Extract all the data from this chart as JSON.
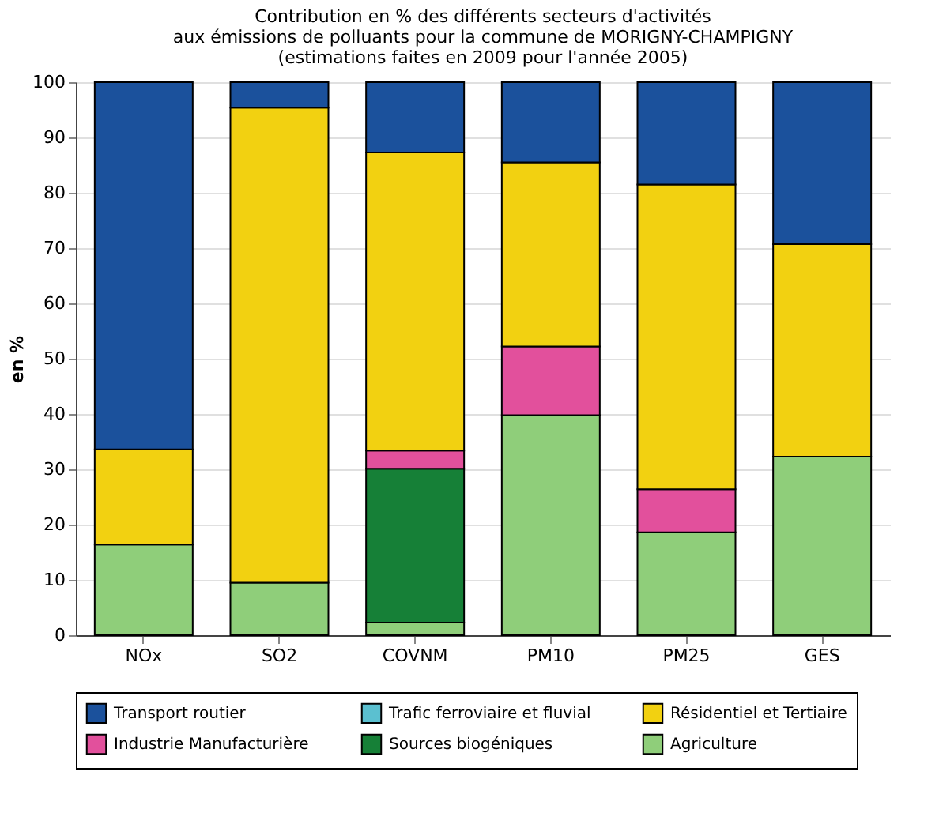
{
  "chart_data": {
    "type": "bar",
    "stacked": true,
    "title": [
      "Contribution en % des différents secteurs d'activités",
      "aux émissions de polluants pour la commune de MORIGNY-CHAMPIGNY",
      "(estimations faites en 2009 pour l'année 2005)"
    ],
    "ylabel": "en %",
    "categories": [
      "NOx",
      "SO2",
      "COVNM",
      "PM10",
      "PM25",
      "GES"
    ],
    "series": [
      {
        "name": "Agriculture",
        "color": "#8fce7a",
        "values": [
          16.4,
          9.5,
          2.3,
          39.8,
          18.6,
          32.3
        ]
      },
      {
        "name": "Sources biogéniques",
        "color": "#168037",
        "values": [
          null,
          null,
          27.8,
          null,
          null,
          null
        ]
      },
      {
        "name": "Industrie Manufacturière",
        "color": "#e2509c",
        "values": [
          null,
          null,
          3.3,
          12.4,
          7.8,
          null
        ]
      },
      {
        "name": "Résidentiel et Tertiaire",
        "color": "#f2d111",
        "values": [
          17.2,
          85.9,
          53.9,
          33.3,
          55.1,
          38.4
        ]
      },
      {
        "name": "Trafic ferroviaire et fluvial",
        "color": "#5bc0d0",
        "values": [
          null,
          null,
          null,
          null,
          null,
          null
        ]
      },
      {
        "name": "Transport routier",
        "color": "#1b519c",
        "values": [
          66.4,
          4.6,
          12.7,
          14.5,
          18.5,
          29.3
        ]
      }
    ],
    "ylim": [
      0,
      100
    ],
    "yticks": [
      0,
      10,
      20,
      30,
      40,
      50,
      60,
      70,
      80,
      90,
      100
    ],
    "grid": "y",
    "legend": "bottom"
  }
}
